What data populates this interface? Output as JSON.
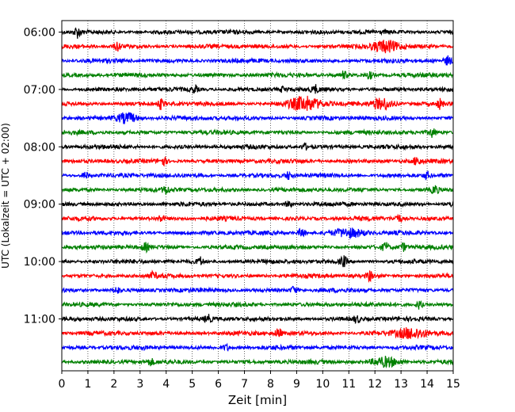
{
  "chart_data": {
    "type": "line",
    "xlabel": "Zeit  [min]",
    "ylabel": "UTC (Lokalzeit = UTC + 02:00)",
    "xlim": [
      0,
      15
    ],
    "x_ticks": [
      "0",
      "1",
      "2",
      "3",
      "4",
      "5",
      "6",
      "7",
      "8",
      "9",
      "10",
      "11",
      "12",
      "13",
      "14",
      "15"
    ],
    "y_tick_labels": [
      "06:00",
      "07:00",
      "08:00",
      "09:00",
      "10:00",
      "11:00"
    ],
    "grid": "vertical dotted at each minute",
    "trace_start_times": [
      "06:00",
      "06:15",
      "06:30",
      "06:45",
      "07:00",
      "07:15",
      "07:30",
      "07:45",
      "08:00",
      "08:15",
      "08:30",
      "08:45",
      "09:00",
      "09:15",
      "09:30",
      "09:45",
      "10:00",
      "10:15",
      "10:30",
      "10:45",
      "11:00",
      "11:15",
      "11:30",
      "11:45"
    ],
    "trace_colors_cycle": [
      "#000000",
      "#ff0000",
      "#0000ff",
      "#008000"
    ],
    "events": [
      {
        "trace": 0,
        "x": 0.6,
        "amp": 0.9
      },
      {
        "trace": 1,
        "x": 2.15,
        "amp": 0.8
      },
      {
        "trace": 1,
        "x": 12.4,
        "amp": 1.0,
        "width": 0.5
      },
      {
        "trace": 2,
        "x": 14.8,
        "amp": 0.7
      },
      {
        "trace": 3,
        "x": 10.8,
        "amp": 0.6
      },
      {
        "trace": 3,
        "x": 11.8,
        "amp": 0.6
      },
      {
        "trace": 4,
        "x": 5.1,
        "amp": 0.6
      },
      {
        "trace": 4,
        "x": 8.5,
        "amp": 0.5
      },
      {
        "trace": 4,
        "x": 9.7,
        "amp": 0.6
      },
      {
        "trace": 5,
        "x": 3.8,
        "amp": 0.8
      },
      {
        "trace": 5,
        "x": 9.3,
        "amp": 1.2,
        "width": 0.6
      },
      {
        "trace": 5,
        "x": 12.3,
        "amp": 1.0,
        "width": 0.4
      },
      {
        "trace": 5,
        "x": 14.5,
        "amp": 0.8
      },
      {
        "trace": 6,
        "x": 2.5,
        "amp": 0.9,
        "width": 0.4
      },
      {
        "trace": 7,
        "x": 14.2,
        "amp": 0.7
      },
      {
        "trace": 8,
        "x": 9.3,
        "amp": 0.5
      },
      {
        "trace": 9,
        "x": 3.9,
        "amp": 0.7
      },
      {
        "trace": 9,
        "x": 13.6,
        "amp": 0.7
      },
      {
        "trace": 10,
        "x": 0.9,
        "amp": 0.6
      },
      {
        "trace": 10,
        "x": 8.7,
        "amp": 0.6
      },
      {
        "trace": 10,
        "x": 14.0,
        "amp": 0.6
      },
      {
        "trace": 11,
        "x": 4.0,
        "amp": 0.7
      },
      {
        "trace": 11,
        "x": 14.3,
        "amp": 0.7
      },
      {
        "trace": 12,
        "x": 8.7,
        "amp": 0.6
      },
      {
        "trace": 12,
        "x": 15.0,
        "amp": 0.6
      },
      {
        "trace": 13,
        "x": 12.9,
        "amp": 0.7
      },
      {
        "trace": 13,
        "x": 3.8,
        "amp": 0.5
      },
      {
        "trace": 14,
        "x": 9.2,
        "amp": 0.9
      },
      {
        "trace": 14,
        "x": 11.0,
        "amp": 0.7,
        "width": 0.6
      },
      {
        "trace": 15,
        "x": 3.2,
        "amp": 0.6
      },
      {
        "trace": 15,
        "x": 12.4,
        "amp": 0.7
      },
      {
        "trace": 15,
        "x": 13.1,
        "amp": 0.6
      },
      {
        "trace": 16,
        "x": 5.3,
        "amp": 0.7
      },
      {
        "trace": 16,
        "x": 10.8,
        "amp": 0.9
      },
      {
        "trace": 17,
        "x": 11.8,
        "amp": 0.8
      },
      {
        "trace": 17,
        "x": 3.5,
        "amp": 0.5
      },
      {
        "trace": 18,
        "x": 2.1,
        "amp": 0.6
      },
      {
        "trace": 18,
        "x": 8.9,
        "amp": 0.7
      },
      {
        "trace": 19,
        "x": 13.7,
        "amp": 0.7
      },
      {
        "trace": 20,
        "x": 5.6,
        "amp": 0.6
      },
      {
        "trace": 20,
        "x": 11.3,
        "amp": 0.6
      },
      {
        "trace": 21,
        "x": 8.3,
        "amp": 0.8
      },
      {
        "trace": 21,
        "x": 13.4,
        "amp": 0.9,
        "width": 0.6
      },
      {
        "trace": 22,
        "x": 6.3,
        "amp": 0.5
      },
      {
        "trace": 23,
        "x": 12.4,
        "amp": 0.8,
        "width": 0.5
      },
      {
        "trace": 23,
        "x": 3.4,
        "amp": 0.5
      }
    ]
  }
}
